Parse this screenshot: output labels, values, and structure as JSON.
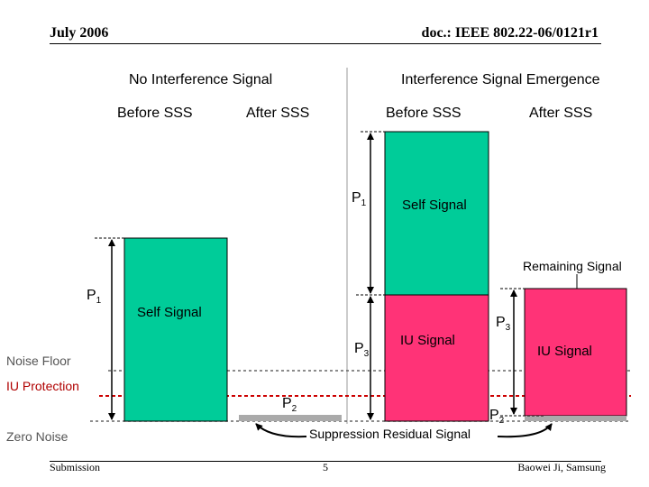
{
  "header": {
    "date": "July 2006",
    "doc": "doc.: IEEE 802.22-06/0121r1"
  },
  "footer": {
    "left": "Submission",
    "page": "5",
    "right": "Baowei Ji, Samsung"
  },
  "sections": {
    "left_title": "No Interference Signal",
    "right_title": "Interference Signal Emergence",
    "left_before": "Before SSS",
    "left_after": "After SSS",
    "right_before": "Before SSS",
    "right_after": "After SSS"
  },
  "levels": {
    "noise_floor": "Noise Floor",
    "iu_protection": "IU Protection",
    "zero_noise": "Zero Noise"
  },
  "labels": {
    "p_main": "P",
    "p_sub1": "1",
    "p_sub2": "2",
    "p_sub3": "3",
    "self_signal": "Self Signal",
    "iu_signal": "IU Signal",
    "remaining_signal": "Remaining Signal",
    "suppression_residual": "Suppression Residual Signal"
  },
  "colors": {
    "self_signal": "#00cc99",
    "iu_signal": "#ff3377",
    "residual": "#aaaaaa",
    "iu_protection_line": "#cc0000"
  }
}
